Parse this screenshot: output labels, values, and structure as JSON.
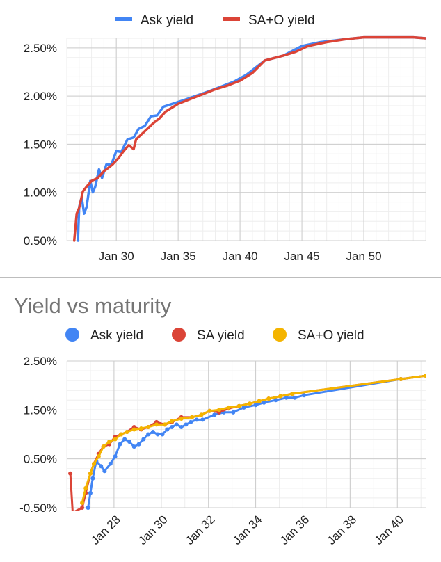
{
  "chart_data": [
    {
      "type": "line",
      "title": "",
      "legend_position": "top",
      "series": [
        {
          "name": "Ask yield",
          "color": "#4285f4",
          "points": [
            [
              2026.9,
              0.5
            ],
            [
              2027.0,
              0.85
            ],
            [
              2027.2,
              0.95
            ],
            [
              2027.4,
              0.78
            ],
            [
              2027.6,
              0.85
            ],
            [
              2027.9,
              1.12
            ],
            [
              2028.1,
              1.0
            ],
            [
              2028.3,
              1.06
            ],
            [
              2028.6,
              1.24
            ],
            [
              2028.85,
              1.15
            ],
            [
              2029.2,
              1.29
            ],
            [
              2029.6,
              1.29
            ],
            [
              2030.0,
              1.43
            ],
            [
              2030.4,
              1.42
            ],
            [
              2030.9,
              1.55
            ],
            [
              2031.4,
              1.57
            ],
            [
              2031.8,
              1.66
            ],
            [
              2032.3,
              1.69
            ],
            [
              2032.8,
              1.79
            ],
            [
              2033.3,
              1.8
            ],
            [
              2033.8,
              1.89
            ],
            [
              2035.5,
              1.96
            ],
            [
              2037.5,
              2.05
            ],
            [
              2039.5,
              2.15
            ],
            [
              2040.5,
              2.22
            ],
            [
              2041.2,
              2.29
            ],
            [
              2042.0,
              2.37
            ],
            [
              2043.5,
              2.42
            ],
            [
              2045.0,
              2.52
            ],
            [
              2046.5,
              2.56
            ],
            [
              2048.5,
              2.59
            ],
            [
              2050.0,
              2.61
            ],
            [
              2052.0,
              2.61
            ],
            [
              2054.0,
              2.61
            ],
            [
              2055.0,
              2.6
            ]
          ]
        },
        {
          "name": "SA+O yield",
          "color": "#db4437",
          "points": [
            [
              2026.6,
              0.5
            ],
            [
              2026.8,
              0.78
            ],
            [
              2027.0,
              0.84
            ],
            [
              2027.3,
              1.01
            ],
            [
              2027.6,
              1.06
            ],
            [
              2028.0,
              1.12
            ],
            [
              2028.5,
              1.15
            ],
            [
              2029.0,
              1.22
            ],
            [
              2029.7,
              1.29
            ],
            [
              2030.2,
              1.36
            ],
            [
              2030.6,
              1.43
            ],
            [
              2031.0,
              1.49
            ],
            [
              2031.4,
              1.45
            ],
            [
              2031.6,
              1.55
            ],
            [
              2032.0,
              1.6
            ],
            [
              2032.5,
              1.66
            ],
            [
              2033.0,
              1.72
            ],
            [
              2033.5,
              1.77
            ],
            [
              2034.0,
              1.84
            ],
            [
              2034.5,
              1.88
            ],
            [
              2035.0,
              1.92
            ],
            [
              2036.0,
              1.97
            ],
            [
              2037.0,
              2.02
            ],
            [
              2038.0,
              2.07
            ],
            [
              2039.0,
              2.11
            ],
            [
              2040.0,
              2.16
            ],
            [
              2041.0,
              2.24
            ],
            [
              2042.0,
              2.37
            ],
            [
              2043.5,
              2.42
            ],
            [
              2044.5,
              2.46
            ],
            [
              2045.5,
              2.52
            ],
            [
              2047.0,
              2.56
            ],
            [
              2048.5,
              2.59
            ],
            [
              2050.0,
              2.61
            ],
            [
              2052.0,
              2.61
            ],
            [
              2054.0,
              2.61
            ],
            [
              2055.0,
              2.6
            ]
          ]
        }
      ],
      "x_tick_labels": [
        {
          "label": "Jan 30",
          "value": 2030
        },
        {
          "label": "Jan 35",
          "value": 2035
        },
        {
          "label": "Jan 40",
          "value": 2040
        },
        {
          "label": "Jan 45",
          "value": 2045
        },
        {
          "label": "Jan 50",
          "value": 2050
        }
      ],
      "y_tick_labels": [
        {
          "label": "0.50%",
          "value": 0.5
        },
        {
          "label": "1.00%",
          "value": 1.0
        },
        {
          "label": "1.50%",
          "value": 1.5
        },
        {
          "label": "2.00%",
          "value": 2.0
        },
        {
          "label": "2.50%",
          "value": 2.5
        }
      ],
      "xlim": [
        2026.0,
        2055.0
      ],
      "ylim": [
        0.5,
        2.6
      ],
      "grid": true
    },
    {
      "type": "line",
      "title": "Yield vs maturity",
      "legend_position": "top",
      "series": [
        {
          "name": "Ask yield",
          "color": "#4285f4",
          "points": [
            [
              2026.9,
              -0.5
            ],
            [
              2027.0,
              -0.2
            ],
            [
              2027.1,
              0.1
            ],
            [
              2027.25,
              0.45
            ],
            [
              2027.45,
              0.35
            ],
            [
              2027.6,
              0.25
            ],
            [
              2027.85,
              0.4
            ],
            [
              2028.05,
              0.55
            ],
            [
              2028.25,
              0.8
            ],
            [
              2028.45,
              0.9
            ],
            [
              2028.65,
              0.85
            ],
            [
              2028.85,
              0.75
            ],
            [
              2029.05,
              0.8
            ],
            [
              2029.25,
              0.9
            ],
            [
              2029.45,
              1.0
            ],
            [
              2029.65,
              1.05
            ],
            [
              2029.85,
              1.0
            ],
            [
              2030.05,
              1.0
            ],
            [
              2030.25,
              1.1
            ],
            [
              2030.45,
              1.15
            ],
            [
              2030.65,
              1.2
            ],
            [
              2030.85,
              1.15
            ],
            [
              2031.05,
              1.2
            ],
            [
              2031.25,
              1.25
            ],
            [
              2031.5,
              1.3
            ],
            [
              2031.75,
              1.3
            ],
            [
              2032.25,
              1.4
            ],
            [
              2032.65,
              1.45
            ],
            [
              2033.05,
              1.45
            ],
            [
              2033.5,
              1.55
            ],
            [
              2034.0,
              1.6
            ],
            [
              2034.35,
              1.65
            ],
            [
              2034.85,
              1.7
            ],
            [
              2035.3,
              1.75
            ],
            [
              2035.65,
              1.75
            ],
            [
              2036.05,
              1.8
            ],
            [
              2040.15,
              2.13
            ],
            [
              2041.2,
              2.2
            ]
          ]
        },
        {
          "name": "SA yield",
          "color": "#db4437",
          "points": [
            [
              2026.15,
              0.2
            ],
            [
              2026.25,
              -0.6
            ],
            [
              2026.65,
              -0.5
            ],
            [
              2026.8,
              -0.2
            ],
            [
              2027.0,
              0.2
            ],
            [
              2027.15,
              0.4
            ],
            [
              2027.35,
              0.6
            ],
            [
              2027.55,
              0.75
            ],
            [
              2027.8,
              0.8
            ],
            [
              2028.05,
              0.95
            ],
            [
              2028.3,
              1.0
            ],
            [
              2028.55,
              1.05
            ],
            [
              2028.85,
              1.15
            ],
            [
              2029.15,
              1.1
            ],
            [
              2029.45,
              1.15
            ],
            [
              2029.8,
              1.25
            ],
            [
              2030.15,
              1.2
            ],
            [
              2030.45,
              1.25
            ],
            [
              2030.85,
              1.35
            ],
            [
              2031.3,
              1.35
            ],
            [
              2031.7,
              1.4
            ],
            [
              2032.05,
              1.48
            ],
            [
              2032.45,
              1.45
            ],
            [
              2032.85,
              1.53
            ],
            [
              2033.3,
              1.58
            ],
            [
              2033.75,
              1.63
            ],
            [
              2034.15,
              1.68
            ],
            [
              2034.55,
              1.73
            ],
            [
              2035.05,
              1.78
            ],
            [
              2035.55,
              1.83
            ],
            [
              2040.15,
              2.13
            ],
            [
              2041.2,
              2.2
            ]
          ]
        },
        {
          "name": "SA+O yield",
          "color": "#f4b400",
          "points": [
            [
              2026.65,
              -0.4
            ],
            [
              2026.8,
              -0.1
            ],
            [
              2027.0,
              0.2
            ],
            [
              2027.15,
              0.4
            ],
            [
              2027.35,
              0.55
            ],
            [
              2027.55,
              0.75
            ],
            [
              2027.8,
              0.85
            ],
            [
              2028.05,
              0.9
            ],
            [
              2028.3,
              1.0
            ],
            [
              2028.55,
              1.05
            ],
            [
              2028.85,
              1.1
            ],
            [
              2029.15,
              1.12
            ],
            [
              2029.45,
              1.15
            ],
            [
              2029.8,
              1.2
            ],
            [
              2030.15,
              1.2
            ],
            [
              2030.45,
              1.27
            ],
            [
              2030.85,
              1.32
            ],
            [
              2031.3,
              1.35
            ],
            [
              2031.7,
              1.4
            ],
            [
              2032.05,
              1.48
            ],
            [
              2032.45,
              1.5
            ],
            [
              2032.85,
              1.55
            ],
            [
              2033.3,
              1.58
            ],
            [
              2033.75,
              1.63
            ],
            [
              2034.15,
              1.68
            ],
            [
              2034.55,
              1.73
            ],
            [
              2035.05,
              1.78
            ],
            [
              2035.55,
              1.83
            ],
            [
              2040.15,
              2.13
            ],
            [
              2041.2,
              2.2
            ]
          ]
        }
      ],
      "x_tick_labels": [
        {
          "label": "Jan 28",
          "value": 2028
        },
        {
          "label": "Jan 30",
          "value": 2030
        },
        {
          "label": "Jan 32",
          "value": 2032
        },
        {
          "label": "Jan 34",
          "value": 2034
        },
        {
          "label": "Jan 36",
          "value": 2036
        },
        {
          "label": "Jan 38",
          "value": 2038
        },
        {
          "label": "Jan 40",
          "value": 2040
        }
      ],
      "y_tick_labels": [
        {
          "label": "-0.50%",
          "value": -0.5
        },
        {
          "label": "0.50%",
          "value": 0.5
        },
        {
          "label": "1.50%",
          "value": 1.5
        },
        {
          "label": "2.50%",
          "value": 2.5
        }
      ],
      "xlim": [
        2026.0,
        2041.2
      ],
      "ylim": [
        -0.5,
        2.5
      ],
      "grid": true
    }
  ]
}
